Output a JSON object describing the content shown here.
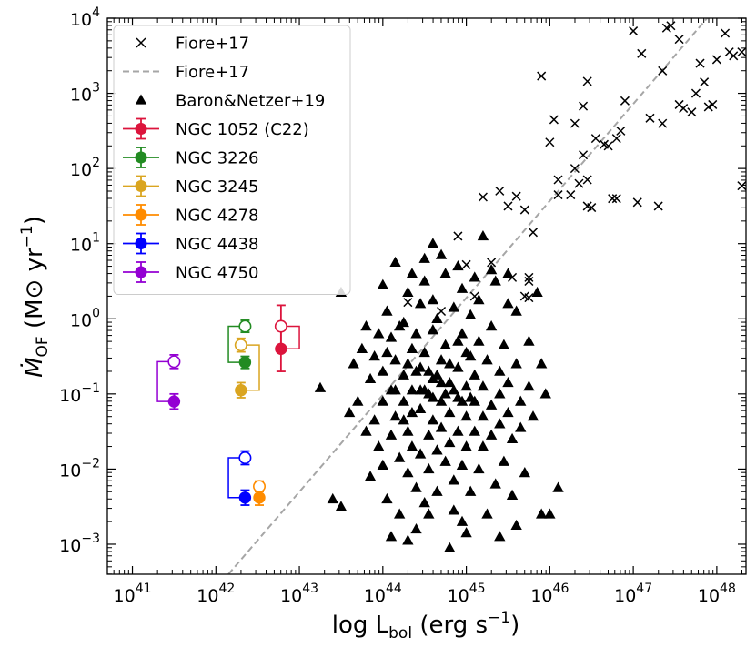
{
  "chart_data": {
    "type": "scatter",
    "xlabel": {
      "main": "log L",
      "sub": "bol",
      "rest": " (erg s",
      "sup": "−1",
      "end": ")"
    },
    "ylabel": {
      "dot": "Ṁ",
      "sub": "OF",
      "rest": " (M⊙ yr",
      "sup": "−1",
      "end": ")"
    },
    "xscale": "log",
    "yscale": "log",
    "xlim_exp": [
      40.7,
      48.35
    ],
    "ylim_exp": [
      -3.4,
      4.0
    ],
    "x_ticks": [
      41,
      42,
      43,
      44,
      45,
      46,
      47,
      48
    ],
    "y_ticks": [
      -3,
      -2,
      -1,
      0,
      1,
      2,
      3,
      4
    ],
    "tick_base": "10",
    "grid": false,
    "legend_position": "upper-left",
    "fiore_line": {
      "name": "Fiore+17",
      "color": "#a6a6a6",
      "x_exp": [
        42.15,
        48.0
      ],
      "y_exp": [
        -3.4,
        4.15
      ]
    },
    "fiore_points": {
      "name": "Fiore+17",
      "marker": "x",
      "color": "#000000",
      "points_exp": [
        [
          44.3,
          0.22
        ],
        [
          44.7,
          0.1
        ],
        [
          44.9,
          1.1
        ],
        [
          45.2,
          1.62
        ],
        [
          45.4,
          1.7
        ],
        [
          45.5,
          1.5
        ],
        [
          45.6,
          1.63
        ],
        [
          45.7,
          1.45
        ],
        [
          45.8,
          1.15
        ],
        [
          45.7,
          0.3
        ],
        [
          45.55,
          0.55
        ],
        [
          45.3,
          0.75
        ],
        [
          45.1,
          0.3
        ],
        [
          45.0,
          0.72
        ],
        [
          45.75,
          0.55
        ],
        [
          45.75,
          0.28
        ],
        [
          45.75,
          0.5
        ],
        [
          45.9,
          3.23
        ],
        [
          46.0,
          2.35
        ],
        [
          46.05,
          2.65
        ],
        [
          46.1,
          1.85
        ],
        [
          46.1,
          1.65
        ],
        [
          46.25,
          1.65
        ],
        [
          46.3,
          2.0
        ],
        [
          46.3,
          2.6
        ],
        [
          46.35,
          1.8
        ],
        [
          46.4,
          2.83
        ],
        [
          46.4,
          2.18
        ],
        [
          46.45,
          3.16
        ],
        [
          46.45,
          1.85
        ],
        [
          46.45,
          1.5
        ],
        [
          46.5,
          1.48
        ],
        [
          46.55,
          2.4
        ],
        [
          46.65,
          2.32
        ],
        [
          46.8,
          2.4
        ],
        [
          46.85,
          2.5
        ],
        [
          46.7,
          2.3
        ],
        [
          46.75,
          1.6
        ],
        [
          46.8,
          1.6
        ],
        [
          46.9,
          2.9
        ],
        [
          47.0,
          3.83
        ],
        [
          47.05,
          1.55
        ],
        [
          47.2,
          2.67
        ],
        [
          47.3,
          1.5
        ],
        [
          47.35,
          2.6
        ],
        [
          47.35,
          3.3
        ],
        [
          47.4,
          3.87
        ],
        [
          47.1,
          3.53
        ],
        [
          47.45,
          3.9
        ],
        [
          47.55,
          3.72
        ],
        [
          47.55,
          2.85
        ],
        [
          47.6,
          2.8
        ],
        [
          47.7,
          2.75
        ],
        [
          47.75,
          3.0
        ],
        [
          47.8,
          3.4
        ],
        [
          47.85,
          3.15
        ],
        [
          47.9,
          2.82
        ],
        [
          47.95,
          2.85
        ],
        [
          48.0,
          3.45
        ],
        [
          48.1,
          3.8
        ],
        [
          48.15,
          3.55
        ],
        [
          48.2,
          3.5
        ],
        [
          48.3,
          3.55
        ],
        [
          48.3,
          1.77
        ],
        [
          48.45,
          3.8
        ],
        [
          48.5,
          3.4
        ],
        [
          48.55,
          3.45
        ],
        [
          48.6,
          3.5
        ],
        [
          48.7,
          3.5
        ],
        [
          48.85,
          3.8
        ]
      ]
    },
    "baron_points": {
      "name": "Baron&Netzer+19",
      "marker": "triangle",
      "color": "#000000",
      "points_exp": [
        [
          43.25,
          -0.92
        ],
        [
          43.4,
          -2.4
        ],
        [
          43.5,
          0.35
        ],
        [
          43.5,
          -2.5
        ],
        [
          43.6,
          -1.25
        ],
        [
          43.65,
          -0.6
        ],
        [
          43.7,
          -1.1
        ],
        [
          43.75,
          -0.4
        ],
        [
          43.8,
          -0.1
        ],
        [
          43.8,
          -1.5
        ],
        [
          43.85,
          -0.8
        ],
        [
          43.85,
          -2.1
        ],
        [
          43.9,
          -0.5
        ],
        [
          43.9,
          -1.35
        ],
        [
          43.95,
          -0.2
        ],
        [
          43.95,
          -1.7
        ],
        [
          44.0,
          -0.7
        ],
        [
          44.0,
          -1.1
        ],
        [
          44.0,
          -1.95
        ],
        [
          44.05,
          -2.4
        ],
        [
          44.05,
          0.1
        ],
        [
          44.1,
          -0.25
        ],
        [
          44.1,
          -0.95
        ],
        [
          44.1,
          -1.55
        ],
        [
          44.15,
          0.75
        ],
        [
          44.15,
          -0.55
        ],
        [
          44.15,
          -1.3
        ],
        [
          44.2,
          -2.6
        ],
        [
          44.2,
          -1.85
        ],
        [
          44.25,
          -0.05
        ],
        [
          44.25,
          -0.75
        ],
        [
          44.25,
          -1.1
        ],
        [
          44.3,
          -1.5
        ],
        [
          44.3,
          -2.05
        ],
        [
          44.3,
          0.35
        ],
        [
          44.35,
          -0.4
        ],
        [
          44.35,
          -0.95
        ],
        [
          44.35,
          -1.7
        ],
        [
          44.4,
          -2.25
        ],
        [
          44.4,
          -2.8
        ],
        [
          44.4,
          -0.2
        ],
        [
          44.45,
          0.2
        ],
        [
          44.45,
          -0.65
        ],
        [
          44.45,
          -1.2
        ],
        [
          44.45,
          -1.8
        ],
        [
          44.5,
          -2.45
        ],
        [
          44.5,
          0.5
        ],
        [
          44.5,
          -0.45
        ],
        [
          44.55,
          -1.0
        ],
        [
          44.55,
          -1.55
        ],
        [
          44.55,
          -2.0
        ],
        [
          44.6,
          -0.15
        ],
        [
          44.6,
          0.25
        ],
        [
          44.6,
          -0.8
        ],
        [
          44.6,
          -1.35
        ],
        [
          44.65,
          -1.75
        ],
        [
          44.65,
          -2.3
        ],
        [
          44.65,
          0.0
        ],
        [
          44.7,
          -0.55
        ],
        [
          44.7,
          -1.1
        ],
        [
          44.7,
          -1.45
        ],
        [
          44.75,
          -1.9
        ],
        [
          44.75,
          0.6
        ],
        [
          44.75,
          -0.35
        ],
        [
          44.8,
          -0.85
        ],
        [
          44.8,
          -1.25
        ],
        [
          44.8,
          -1.65
        ],
        [
          44.85,
          -2.15
        ],
        [
          44.85,
          -2.55
        ],
        [
          44.85,
          0.15
        ],
        [
          44.9,
          -0.65
        ],
        [
          44.9,
          -1.05
        ],
        [
          44.9,
          -1.5
        ],
        [
          44.95,
          -1.95
        ],
        [
          44.95,
          -0.2
        ],
        [
          44.95,
          0.4
        ],
        [
          45.0,
          -0.9
        ],
        [
          45.0,
          -1.3
        ],
        [
          45.0,
          -1.7
        ],
        [
          45.05,
          -2.3
        ],
        [
          45.05,
          -0.5
        ],
        [
          45.05,
          0.05
        ],
        [
          45.1,
          -1.1
        ],
        [
          45.1,
          -1.5
        ],
        [
          45.1,
          -0.75
        ],
        [
          45.15,
          -2.0
        ],
        [
          45.15,
          -0.3
        ],
        [
          45.15,
          0.25
        ],
        [
          45.2,
          -0.9
        ],
        [
          45.2,
          -1.3
        ],
        [
          45.2,
          -1.7
        ],
        [
          45.25,
          -2.6
        ],
        [
          45.25,
          -0.55
        ],
        [
          45.3,
          -1.15
        ],
        [
          45.3,
          -0.1
        ],
        [
          45.3,
          -1.55
        ],
        [
          45.35,
          -2.2
        ],
        [
          45.35,
          0.5
        ],
        [
          45.4,
          -0.7
        ],
        [
          45.4,
          -1.0
        ],
        [
          45.4,
          -1.4
        ],
        [
          45.45,
          -1.9
        ],
        [
          45.45,
          -0.35
        ],
        [
          45.5,
          0.2
        ],
        [
          45.5,
          -0.85
        ],
        [
          45.5,
          -1.25
        ],
        [
          45.55,
          -2.35
        ],
        [
          45.55,
          -1.6
        ],
        [
          45.6,
          -0.6
        ],
        [
          45.6,
          0.1
        ],
        [
          45.65,
          -1.1
        ],
        [
          45.65,
          -1.45
        ],
        [
          45.7,
          -2.05
        ],
        [
          45.75,
          -0.3
        ],
        [
          45.75,
          -0.9
        ],
        [
          45.8,
          -1.3
        ],
        [
          45.85,
          0.35
        ],
        [
          45.9,
          -0.6
        ],
        [
          45.95,
          -1.0
        ],
        [
          46.0,
          -2.6
        ],
        [
          44.15,
          -0.95
        ],
        [
          44.25,
          -1.35
        ],
        [
          44.35,
          -1.25
        ],
        [
          44.45,
          -0.95
        ],
        [
          44.55,
          -0.7
        ],
        [
          44.65,
          -0.75
        ],
        [
          44.75,
          -1.0
        ],
        [
          44.85,
          -0.95
        ],
        [
          44.95,
          -1.1
        ],
        [
          45.05,
          -1.05
        ],
        [
          44.05,
          -0.45
        ],
        [
          44.2,
          -0.1
        ],
        [
          44.3,
          -0.6
        ],
        [
          44.4,
          -0.7
        ],
        [
          44.5,
          -0.95
        ],
        [
          44.6,
          -1.05
        ],
        [
          44.7,
          -0.85
        ],
        [
          44.8,
          -0.6
        ],
        [
          44.9,
          -0.3
        ],
        [
          45.0,
          -0.45
        ],
        [
          44.35,
          0.6
        ],
        [
          44.5,
          0.8
        ],
        [
          44.7,
          0.85
        ],
        [
          44.9,
          0.7
        ],
        [
          45.1,
          0.55
        ],
        [
          45.3,
          0.65
        ],
        [
          45.5,
          0.6
        ],
        [
          44.0,
          0.45
        ],
        [
          44.6,
          1.0
        ],
        [
          45.2,
          1.1
        ],
        [
          44.1,
          -2.9
        ],
        [
          44.3,
          -2.95
        ],
        [
          44.8,
          -3.05
        ],
        [
          45.0,
          -2.85
        ],
        [
          45.4,
          -2.9
        ],
        [
          45.6,
          -2.75
        ],
        [
          45.9,
          -2.6
        ],
        [
          46.1,
          -2.25
        ],
        [
          44.95,
          -2.7
        ],
        [
          44.55,
          -2.6
        ]
      ]
    },
    "series": [
      {
        "name": "NGC 1052 (C22)",
        "color": "#dc143c",
        "x_exp": 42.78,
        "open_y_exp": -0.1,
        "open_err": [
          0.28,
          0.28
        ],
        "filled_y_exp": -0.4,
        "filled_err": [
          0.3,
          0.3
        ],
        "xerr_exp": 0.05,
        "bracket": "right",
        "bracket_dx": 0.22
      },
      {
        "name": "NGC 3226",
        "color": "#228b22",
        "x_exp": 42.35,
        "open_y_exp": -0.1,
        "open_err": [
          0.08,
          0.08
        ],
        "filled_y_exp": -0.58,
        "filled_err": [
          0.08,
          0.08
        ],
        "xerr_exp": 0.05,
        "bracket": "left",
        "bracket_dx": 0.2
      },
      {
        "name": "NGC 3245",
        "color": "#daa520",
        "x_exp": 42.3,
        "open_y_exp": -0.35,
        "open_err": [
          0.09,
          0.09
        ],
        "filled_y_exp": -0.95,
        "filled_err": [
          0.1,
          0.1
        ],
        "xerr_exp": 0.05,
        "bracket": "right",
        "bracket_dx": 0.22
      },
      {
        "name": "NGC 4278",
        "color": "#ff8c00",
        "x_exp": 42.52,
        "open_y_exp": -2.23,
        "open_err": [
          0.07,
          0.07
        ],
        "filled_y_exp": -2.38,
        "filled_err": [
          0.1,
          0.1
        ],
        "xerr_exp": 0.05,
        "bracket": "none",
        "bracket_dx": 0
      },
      {
        "name": "NGC 4438",
        "color": "#0000ff",
        "x_exp": 42.35,
        "open_y_exp": -1.85,
        "open_err": [
          0.09,
          0.09
        ],
        "filled_y_exp": -2.38,
        "filled_err": [
          0.1,
          0.1
        ],
        "xerr_exp": 0.05,
        "bracket": "left",
        "bracket_dx": 0.2
      },
      {
        "name": "NGC 4750",
        "color": "#9400d3",
        "x_exp": 41.5,
        "open_y_exp": -0.57,
        "open_err": [
          0.09,
          0.09
        ],
        "filled_y_exp": -1.1,
        "filled_err": [
          0.1,
          0.1
        ],
        "xerr_exp": 0.05,
        "bracket": "left",
        "bracket_dx": 0.2
      }
    ],
    "legend": [
      {
        "label": "Fiore+17",
        "kind": "x"
      },
      {
        "label": "Fiore+17",
        "kind": "dash"
      },
      {
        "label": "Baron&Netzer+19",
        "kind": "triangle"
      },
      {
        "label": "NGC 1052 (C22)",
        "kind": "errpoint",
        "color": "#dc143c"
      },
      {
        "label": "NGC 3226",
        "kind": "errpoint",
        "color": "#228b22"
      },
      {
        "label": "NGC 3245",
        "kind": "errpoint",
        "color": "#daa520"
      },
      {
        "label": "NGC 4278",
        "kind": "errpoint",
        "color": "#ff8c00"
      },
      {
        "label": "NGC 4438",
        "kind": "errpoint",
        "color": "#0000ff"
      },
      {
        "label": "NGC 4750",
        "kind": "errpoint",
        "color": "#9400d3"
      }
    ]
  }
}
